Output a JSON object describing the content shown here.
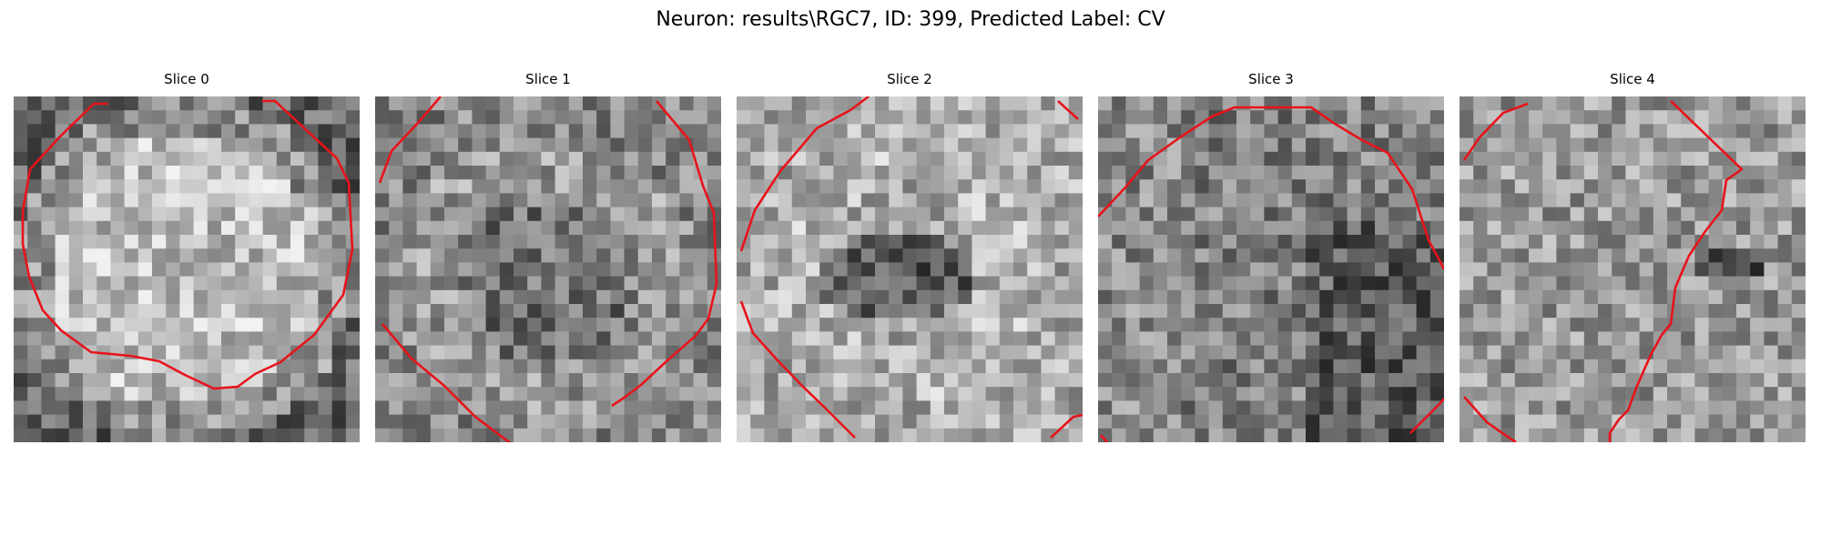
{
  "figure": {
    "title": "Neuron: results\\RGC7, ID: 399, Predicted Label: CV"
  },
  "panels": [
    {
      "title": "Slice 0"
    },
    {
      "title": "Slice 1"
    },
    {
      "title": "Slice 2"
    },
    {
      "title": "Slice 3"
    },
    {
      "title": "Slice 4"
    }
  ],
  "colors": {
    "contour": "#e8131b",
    "background": "#ffffff"
  }
}
